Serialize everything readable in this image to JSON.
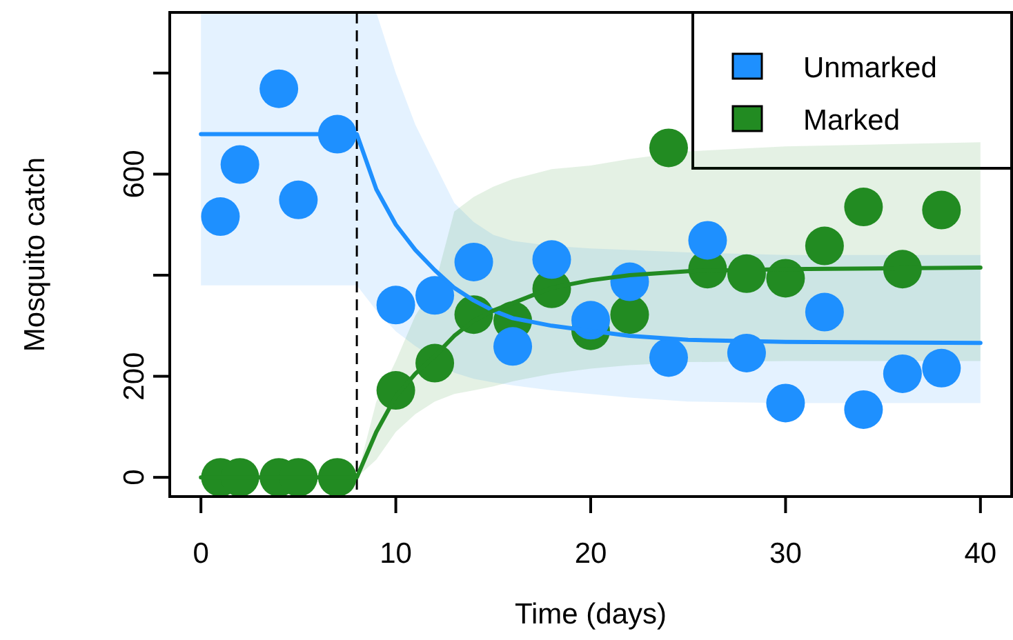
{
  "chart_data": {
    "type": "scatter",
    "xlabel": "Time (days)",
    "ylabel": "Mosquito catch",
    "xlim": [
      -1.6,
      41.6
    ],
    "ylim": [
      -38,
      920
    ],
    "xticks": [
      0,
      10,
      20,
      30,
      40
    ],
    "yticks": [
      0,
      200,
      {
        "value": 400,
        "label": null
      },
      600,
      {
        "value": 800,
        "label": null
      }
    ],
    "grid": false,
    "legend": "top right",
    "marker": "circle",
    "ref_lines": [
      {
        "axis": "x",
        "value": 8,
        "color": "#000000",
        "line_style": "dashed"
      }
    ],
    "series": [
      {
        "type": "line",
        "marker": "none",
        "color": "#1e90ff",
        "x": [
          0,
          8,
          9,
          10,
          11,
          12,
          13,
          14,
          15,
          16,
          18,
          20,
          22,
          25,
          30,
          40
        ],
        "values": [
          679,
          679,
          570,
          500,
          450,
          410,
          375,
          350,
          330,
          315,
          300,
          290,
          280,
          272,
          268,
          266
        ],
        "lower": [
          380,
          380,
          330,
          289,
          260,
          235,
          207,
          195,
          188,
          182,
          172,
          165,
          158,
          150,
          147,
          147
        ],
        "upper": [
          920,
          920,
          920,
          800,
          698,
          620,
          543,
          505,
          480,
          468,
          458,
          453,
          450,
          445,
          440,
          440
        ]
      },
      {
        "type": "line",
        "marker": "none",
        "color": "#228b22",
        "x": [
          0,
          8,
          9,
          10,
          11,
          12,
          13,
          14,
          15,
          16,
          18,
          20,
          22,
          25,
          30,
          40
        ],
        "values": [
          0,
          0,
          90,
          160,
          205,
          240,
          280,
          310,
          330,
          345,
          375,
          390,
          400,
          408,
          412,
          415
        ],
        "lower": [
          0,
          0,
          35,
          90,
          125,
          150,
          165,
          172,
          180,
          190,
          205,
          215,
          222,
          228,
          230,
          230
        ],
        "upper": [
          0,
          0,
          150,
          230,
          320,
          380,
          526,
          555,
          575,
          590,
          610,
          617,
          630,
          645,
          655,
          663
        ]
      },
      {
        "name": "Unmarked",
        "color": "#1e90ff",
        "x": [
          1,
          2,
          4,
          5,
          7,
          10,
          12,
          14,
          16,
          18,
          20,
          22,
          24,
          26,
          28,
          30,
          32,
          34,
          36,
          38
        ],
        "values": [
          516,
          619,
          769,
          549,
          679,
          341,
          360,
          426,
          259,
          431,
          311,
          387,
          237,
          469,
          246,
          147,
          327,
          134,
          205,
          216
        ]
      },
      {
        "name": "Marked",
        "color": "#228b22",
        "x": [
          1,
          2,
          4,
          5,
          7,
          10,
          12,
          14,
          16,
          18,
          20,
          22,
          24,
          26,
          28,
          30,
          32,
          34,
          36,
          38
        ],
        "values": [
          0,
          0,
          0,
          0,
          0,
          172,
          226,
          322,
          310,
          373,
          290,
          322,
          652,
          412,
          403,
          394,
          458,
          535,
          412,
          529
        ]
      }
    ]
  }
}
